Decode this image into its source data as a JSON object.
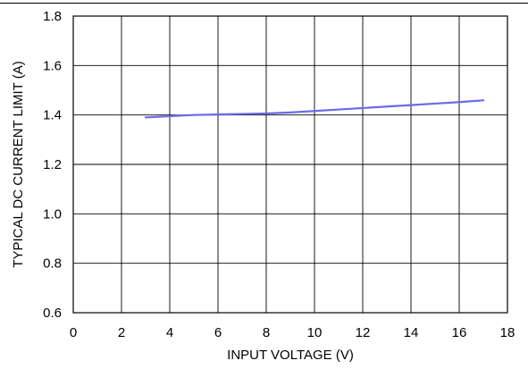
{
  "chart_data": {
    "type": "line",
    "title": "",
    "xlabel": "INPUT VOLTAGE (V)",
    "ylabel": "TYPICAL DC CURRENT LIMIT (A)",
    "xlim": [
      0,
      18
    ],
    "ylim": [
      0.6,
      1.8
    ],
    "xticks": [
      0,
      2,
      4,
      6,
      8,
      10,
      12,
      14,
      16,
      18
    ],
    "yticks": [
      0.6,
      0.8,
      1.0,
      1.2,
      1.4,
      1.6,
      1.8
    ],
    "xtick_labels": [
      "0",
      "2",
      "4",
      "6",
      "8",
      "10",
      "12",
      "14",
      "16",
      "18"
    ],
    "ytick_labels": [
      "0.6",
      "0.8",
      "1.0",
      "1.2",
      "1.4",
      "1.6",
      "1.8"
    ],
    "grid": true,
    "series": [
      {
        "color": "#6a6ae8",
        "x": [
          3,
          4,
          5,
          6,
          7,
          8,
          9,
          10,
          11,
          12,
          13,
          14,
          15,
          16,
          17
        ],
        "y": [
          1.39,
          1.395,
          1.4,
          1.402,
          1.404,
          1.406,
          1.41,
          1.416,
          1.422,
          1.428,
          1.434,
          1.44,
          1.446,
          1.452,
          1.459
        ]
      }
    ]
  }
}
